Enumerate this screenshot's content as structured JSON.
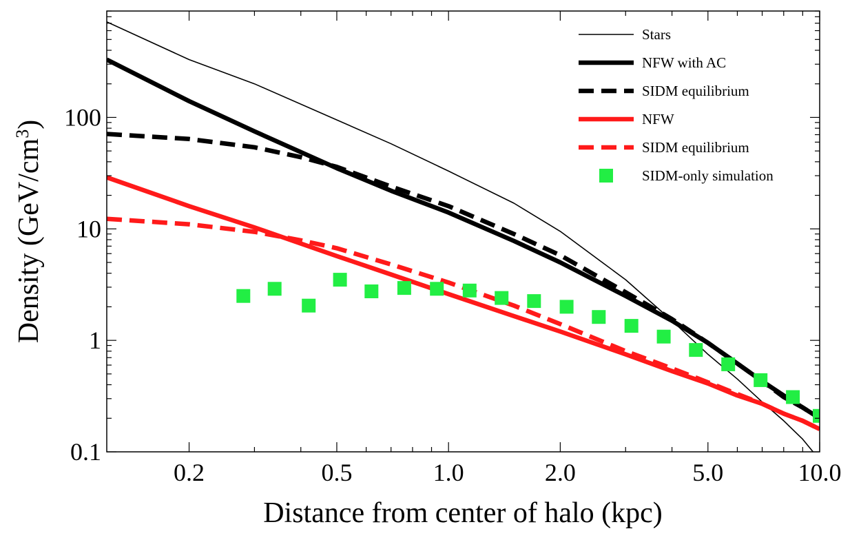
{
  "chart_data": {
    "type": "line",
    "xlabel": "Distance from center of halo (kpc)",
    "ylabel_main": "Density (GeV/cm",
    "ylabel_sup": "3",
    "ylabel_end": ")",
    "xscale": "log",
    "yscale": "log",
    "xlim": [
      0.12,
      10.0
    ],
    "ylim": [
      0.1,
      900
    ],
    "grid": false,
    "legend_position": "top-right",
    "xticks": [
      {
        "value": 0.2,
        "label": "0.2"
      },
      {
        "value": 0.5,
        "label": "0.5"
      },
      {
        "value": 1.0,
        "label": "1.0"
      },
      {
        "value": 2.0,
        "label": "2.0"
      },
      {
        "value": 5.0,
        "label": "5.0"
      },
      {
        "value": 10.0,
        "label": "10.0"
      }
    ],
    "yticks": [
      {
        "value": 0.1,
        "label": "0.1"
      },
      {
        "value": 1,
        "label": "1"
      },
      {
        "value": 10,
        "label": "10"
      },
      {
        "value": 100,
        "label": "100"
      }
    ],
    "series": [
      {
        "name": "Stars",
        "kind": "line",
        "color": "#000000",
        "style": "thin",
        "x": [
          0.12,
          0.2,
          0.3,
          0.5,
          0.7,
          1.0,
          1.5,
          2.0,
          3.0,
          4.0,
          5.0,
          6.0,
          7.0,
          8.0,
          9.0,
          9.6
        ],
        "y": [
          720,
          330,
          200,
          95,
          58,
          33,
          17,
          9.5,
          3.5,
          1.5,
          0.75,
          0.45,
          0.28,
          0.19,
          0.13,
          0.1
        ]
      },
      {
        "name": "NFW with AC",
        "kind": "line",
        "color": "#000000",
        "style": "thick",
        "x": [
          0.12,
          0.2,
          0.3,
          0.5,
          0.7,
          1.0,
          1.5,
          2.0,
          3.0,
          4.0,
          5.0,
          6.0,
          7.0,
          8.0,
          9.0,
          10.0
        ],
        "y": [
          330,
          140,
          75,
          35,
          22,
          14,
          7.8,
          5.0,
          2.5,
          1.5,
          0.95,
          0.62,
          0.43,
          0.32,
          0.25,
          0.2
        ]
      },
      {
        "name": "SIDM equilibrium",
        "kind": "line",
        "color": "#000000",
        "style": "dashed",
        "x": [
          0.12,
          0.2,
          0.3,
          0.4,
          0.5,
          0.7,
          1.0,
          1.5,
          2.0,
          3.0,
          4.0,
          5.0,
          6.0,
          7.0,
          8.0,
          9.0,
          10.0
        ],
        "y": [
          71,
          64,
          54,
          44,
          36,
          24,
          16,
          9.0,
          5.8,
          2.7,
          1.55,
          0.95,
          0.62,
          0.43,
          0.31,
          0.25,
          0.2
        ]
      },
      {
        "name": "NFW",
        "kind": "line",
        "color": "#ff1a1a",
        "style": "thick",
        "x": [
          0.12,
          0.2,
          0.3,
          0.5,
          0.7,
          1.0,
          1.5,
          2.0,
          3.0,
          4.0,
          5.0,
          6.0,
          7.0,
          8.0,
          9.0,
          10.0
        ],
        "y": [
          29,
          16,
          10.3,
          5.7,
          3.9,
          2.6,
          1.65,
          1.2,
          0.75,
          0.53,
          0.41,
          0.32,
          0.27,
          0.22,
          0.19,
          0.16
        ]
      },
      {
        "name": "SIDM equilibrium",
        "kind": "line",
        "color": "#ff1a1a",
        "style": "dashed",
        "x": [
          0.12,
          0.2,
          0.3,
          0.4,
          0.5,
          0.7,
          1.0,
          1.5,
          2.0,
          3.0,
          4.0,
          5.0,
          6.0,
          7.0,
          8.0,
          9.0,
          10.0
        ],
        "y": [
          12.3,
          11.0,
          9.4,
          7.9,
          6.7,
          4.8,
          3.3,
          2.05,
          1.4,
          0.8,
          0.56,
          0.42,
          0.33,
          0.27,
          0.22,
          0.19,
          0.16
        ]
      },
      {
        "name": "SIDM-only simulation",
        "kind": "scatter",
        "color": "#22ee44",
        "x": [
          0.28,
          0.34,
          0.42,
          0.51,
          0.62,
          0.76,
          0.93,
          1.14,
          1.39,
          1.7,
          2.08,
          2.54,
          3.11,
          3.8,
          4.64,
          5.67,
          6.93,
          8.47,
          10.0
        ],
        "y": [
          2.5,
          2.9,
          2.05,
          3.5,
          2.75,
          2.95,
          2.9,
          2.8,
          2.4,
          2.25,
          2.0,
          1.62,
          1.35,
          1.08,
          0.82,
          0.61,
          0.44,
          0.31,
          0.21
        ]
      }
    ]
  }
}
